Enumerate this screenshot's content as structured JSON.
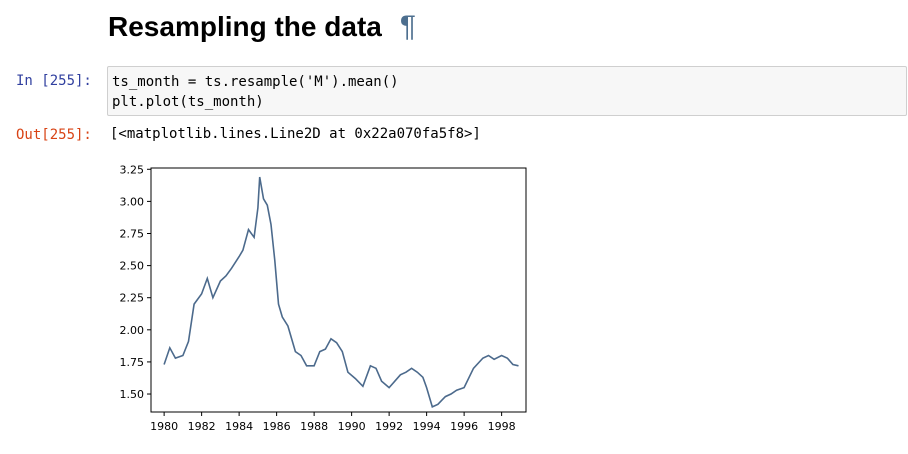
{
  "heading": {
    "title": "Resampling the data",
    "anchor": "¶"
  },
  "cell": {
    "in_prompt": "In [255]:",
    "code_lines": [
      "ts_month = ts.resample('M').mean()",
      "plt.plot(ts_month)"
    ],
    "out_prompt": "Out[255]:",
    "output_text": "[<matplotlib.lines.Line2D at 0x22a070fa5f8>]"
  },
  "chart_data": {
    "type": "line",
    "title": "",
    "xlabel": "",
    "ylabel": "",
    "xlim": [
      1979.3,
      1999.3
    ],
    "ylim": [
      1.36,
      3.26
    ],
    "xticks": [
      "1980",
      "1982",
      "1984",
      "1986",
      "1988",
      "1990",
      "1992",
      "1994",
      "1996",
      "1998"
    ],
    "yticks": [
      "1.50",
      "1.75",
      "2.00",
      "2.25",
      "2.50",
      "2.75",
      "3.00",
      "3.25"
    ],
    "line_color": "#4c6a8c",
    "grid": false,
    "series": [
      {
        "name": "",
        "x": [
          1980.0,
          1980.3,
          1980.6,
          1981.0,
          1981.3,
          1981.6,
          1982.0,
          1982.3,
          1982.6,
          1983.0,
          1983.3,
          1983.6,
          1984.0,
          1984.2,
          1984.5,
          1984.8,
          1985.0,
          1985.1,
          1985.3,
          1985.5,
          1985.7,
          1985.9,
          1986.1,
          1986.3,
          1986.6,
          1987.0,
          1987.3,
          1987.6,
          1988.0,
          1988.3,
          1988.6,
          1988.9,
          1989.2,
          1989.5,
          1989.8,
          1990.2,
          1990.6,
          1991.0,
          1991.3,
          1991.6,
          1992.0,
          1992.3,
          1992.6,
          1992.9,
          1993.2,
          1993.5,
          1993.8,
          1994.0,
          1994.3,
          1994.6,
          1994.8,
          1995.0,
          1995.3,
          1995.6,
          1996.0,
          1996.5,
          1997.0,
          1997.3,
          1997.6,
          1998.0,
          1998.3,
          1998.6,
          1998.9
        ],
        "y": [
          1.73,
          1.86,
          1.78,
          1.8,
          1.91,
          2.2,
          2.28,
          2.4,
          2.25,
          2.38,
          2.42,
          2.48,
          2.57,
          2.62,
          2.78,
          2.72,
          2.95,
          3.19,
          3.02,
          2.97,
          2.82,
          2.54,
          2.2,
          2.1,
          2.03,
          1.83,
          1.8,
          1.72,
          1.72,
          1.83,
          1.85,
          1.93,
          1.9,
          1.83,
          1.67,
          1.62,
          1.56,
          1.72,
          1.7,
          1.6,
          1.55,
          1.6,
          1.65,
          1.67,
          1.7,
          1.67,
          1.63,
          1.55,
          1.4,
          1.42,
          1.45,
          1.48,
          1.5,
          1.53,
          1.55,
          1.7,
          1.78,
          1.8,
          1.77,
          1.8,
          1.78,
          1.73,
          1.72
        ]
      }
    ]
  }
}
